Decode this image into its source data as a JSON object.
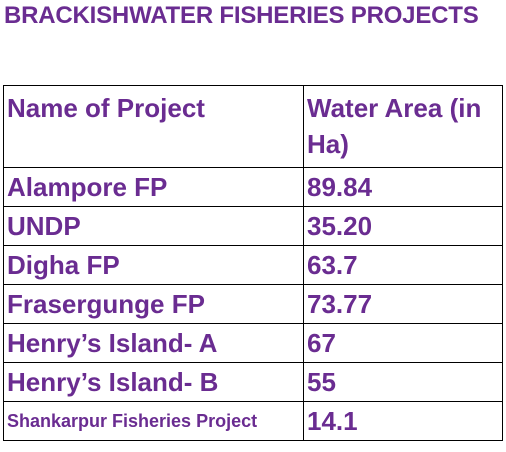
{
  "title": "BRACKISHWATER FISHERIES PROJECTS",
  "table": {
    "headers": {
      "name": "Name of Project",
      "area": "Water Area (in Ha)"
    },
    "rows": [
      {
        "name": "Alampore FP",
        "area": "89.84"
      },
      {
        "name": "UNDP",
        "area": "35.20"
      },
      {
        "name": "Digha FP",
        "area": "63.7"
      },
      {
        "name": "Frasergunge FP",
        "area": "73.77"
      },
      {
        "name": "Henry’s Island- A",
        "area": "67"
      },
      {
        "name": "Henry’s Island- B",
        "area": "55"
      },
      {
        "name": "Shankarpur Fisheries Project",
        "area": "14.1"
      }
    ]
  },
  "colors": {
    "text": "#6a2c91",
    "border": "#000000",
    "background": "#ffffff"
  }
}
